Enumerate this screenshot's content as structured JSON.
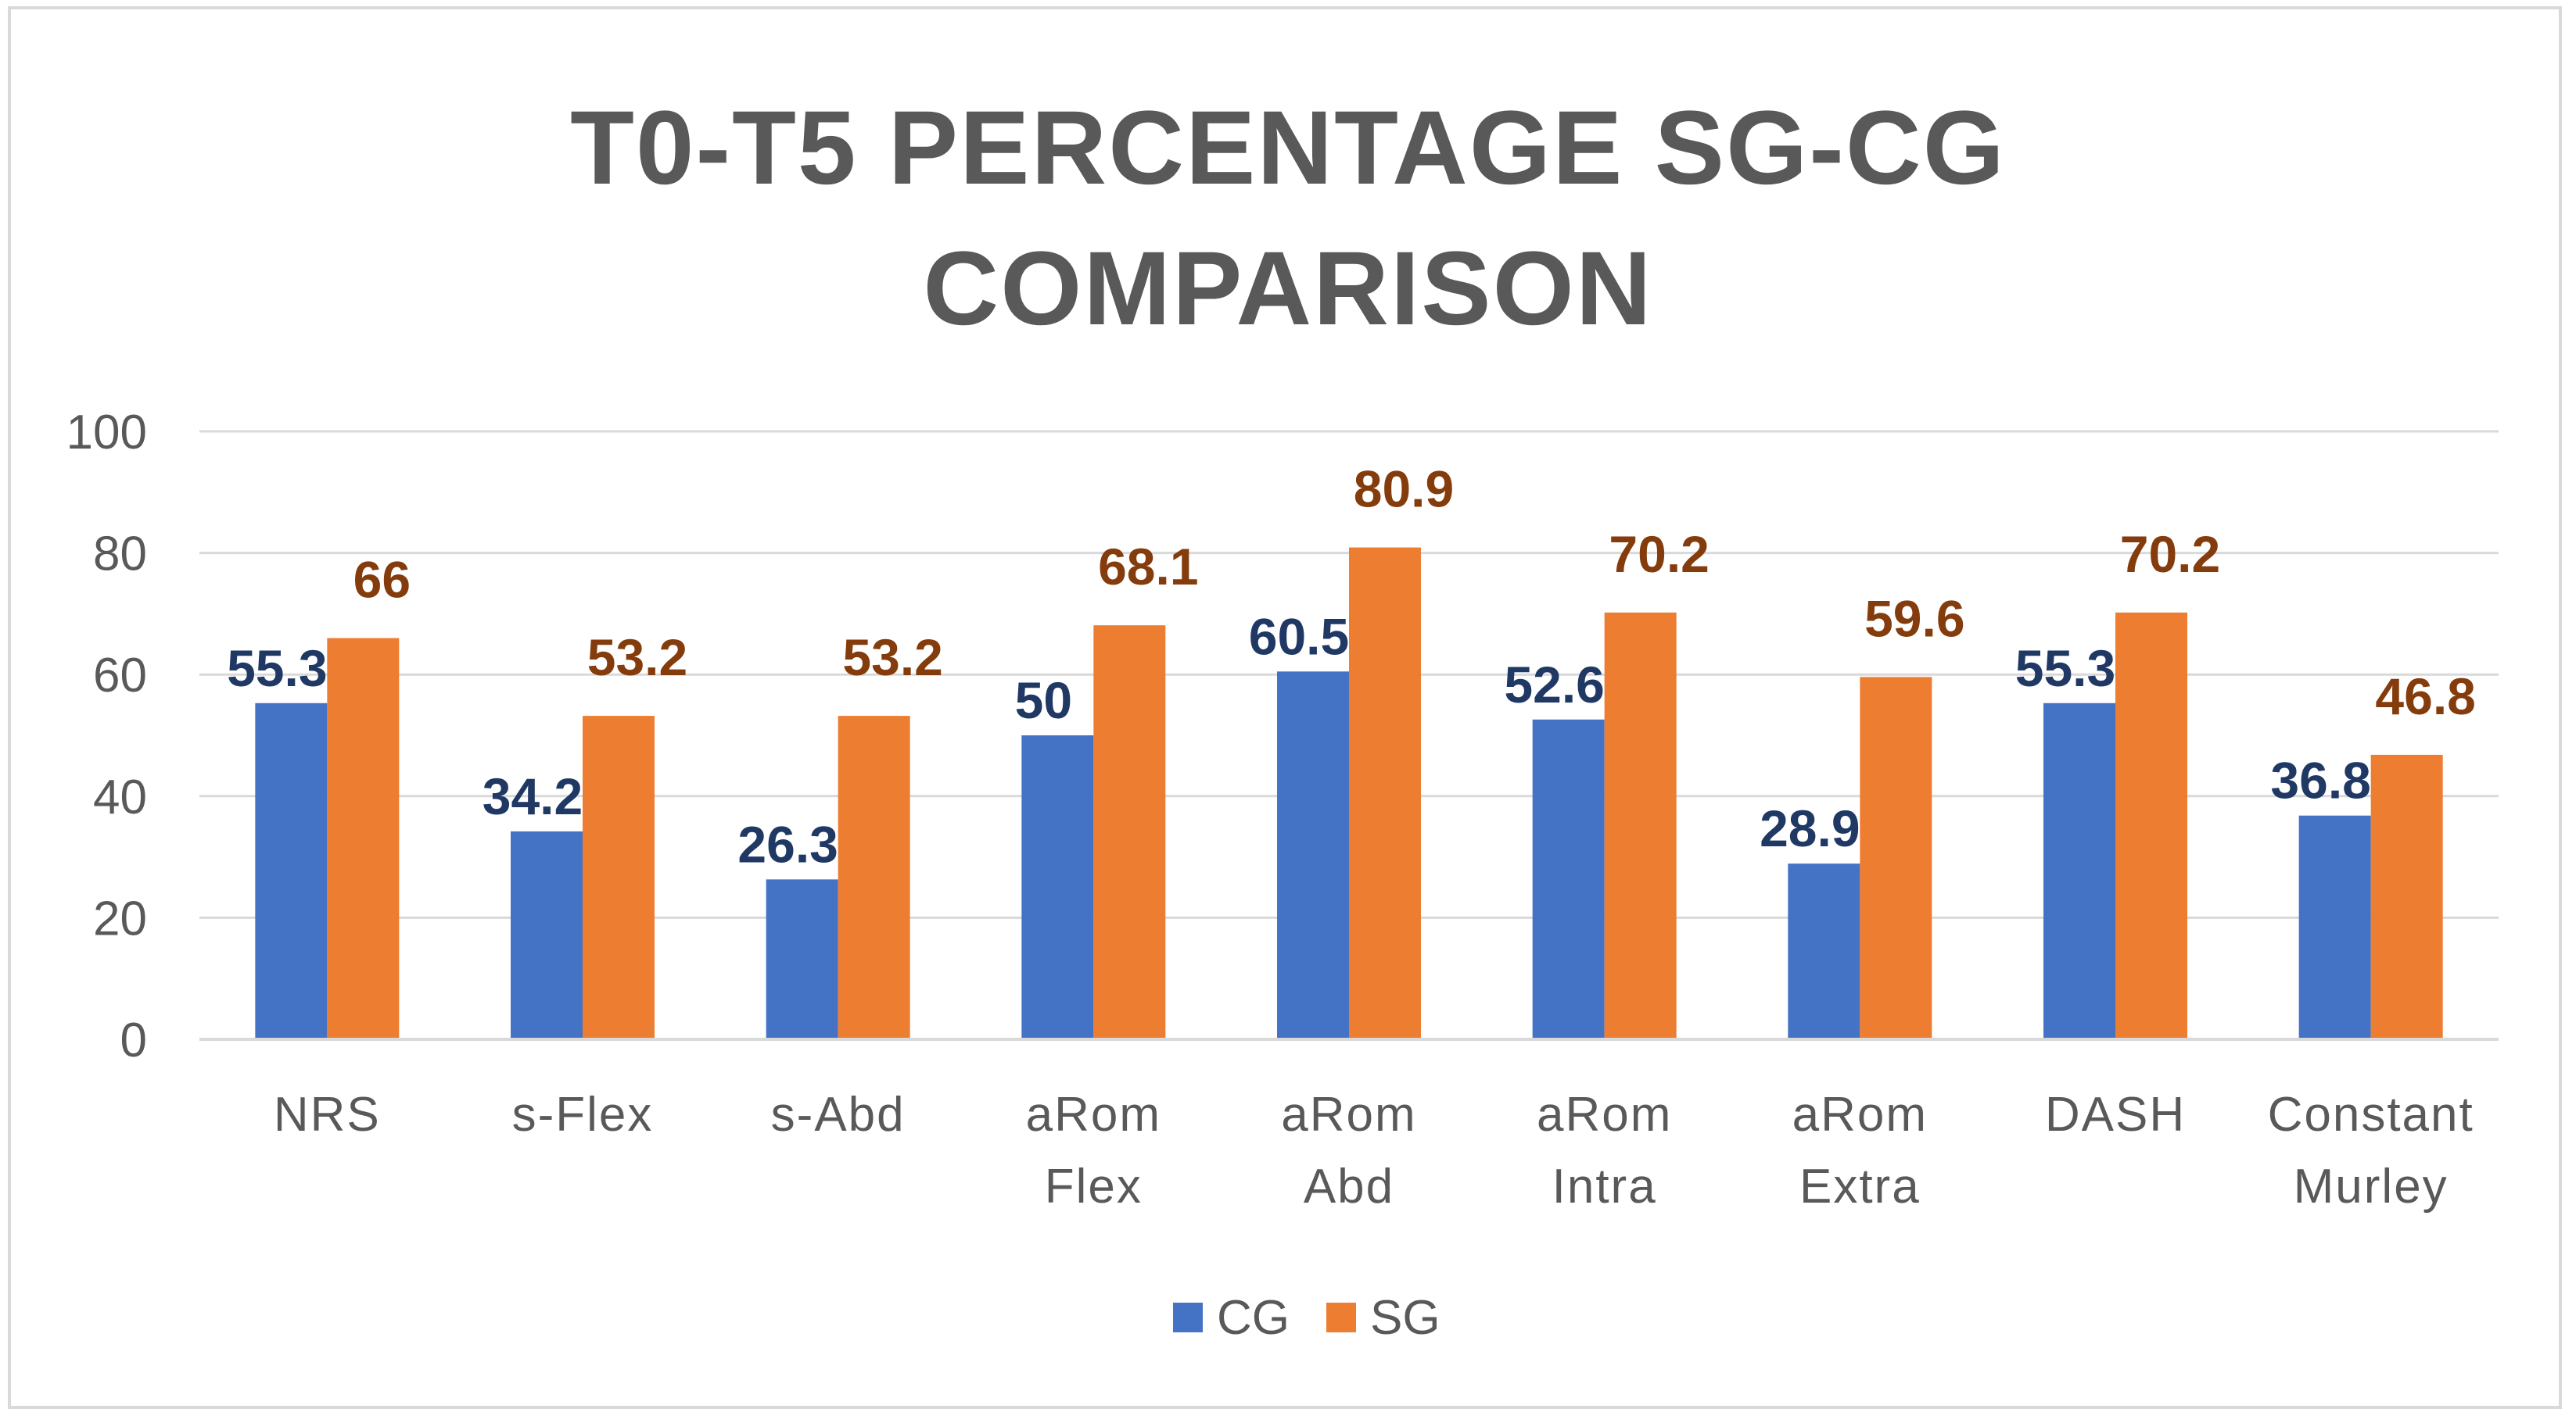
{
  "chart_data": {
    "type": "bar",
    "title_lines": [
      "T0-T5 PERCENTAGE SG-CG",
      "COMPARISON"
    ],
    "categories": [
      [
        "NRS"
      ],
      [
        "s-Flex"
      ],
      [
        "s-Abd"
      ],
      [
        "aRom",
        "Flex"
      ],
      [
        "aRom",
        "Abd"
      ],
      [
        "aRom",
        "Intra"
      ],
      [
        "aRom",
        "Extra"
      ],
      [
        "DASH"
      ],
      [
        "Constant",
        "Murley"
      ]
    ],
    "series": [
      {
        "name": "CG",
        "color": "#4472c4",
        "label_color": "#203864",
        "values": [
          55.3,
          34.2,
          26.3,
          50,
          60.5,
          52.6,
          28.9,
          55.3,
          36.8
        ]
      },
      {
        "name": "SG",
        "color": "#ed7d31",
        "label_color": "#843c0c",
        "values": [
          66,
          53.2,
          53.2,
          68.1,
          80.9,
          70.2,
          59.6,
          70.2,
          46.8
        ]
      }
    ],
    "ylim": [
      0,
      100
    ],
    "yticks": [
      0,
      20,
      40,
      60,
      80,
      100
    ],
    "grid": true,
    "legend": "bottom-center",
    "xlabel": "",
    "ylabel": ""
  }
}
